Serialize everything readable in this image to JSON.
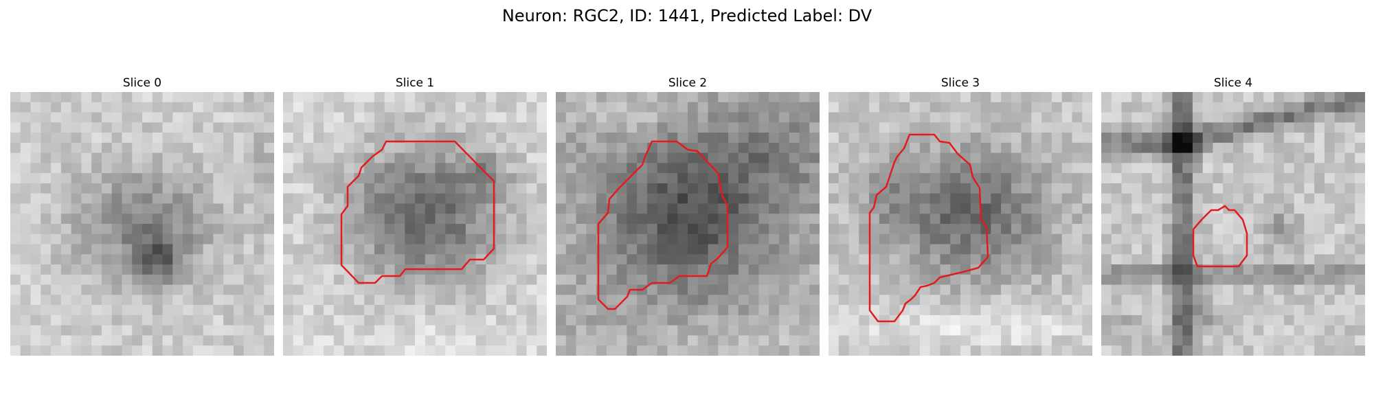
{
  "figure": {
    "title": "Neuron: RGC2, ID: 1441, Predicted Label: DV"
  },
  "panels": [
    {
      "title": "Slice 0"
    },
    {
      "title": "Slice 1"
    },
    {
      "title": "Slice 2"
    },
    {
      "title": "Slice 3"
    },
    {
      "title": "Slice 4"
    }
  ],
  "colors": {
    "contour": "#e41a1c",
    "background": "#ffffff"
  }
}
